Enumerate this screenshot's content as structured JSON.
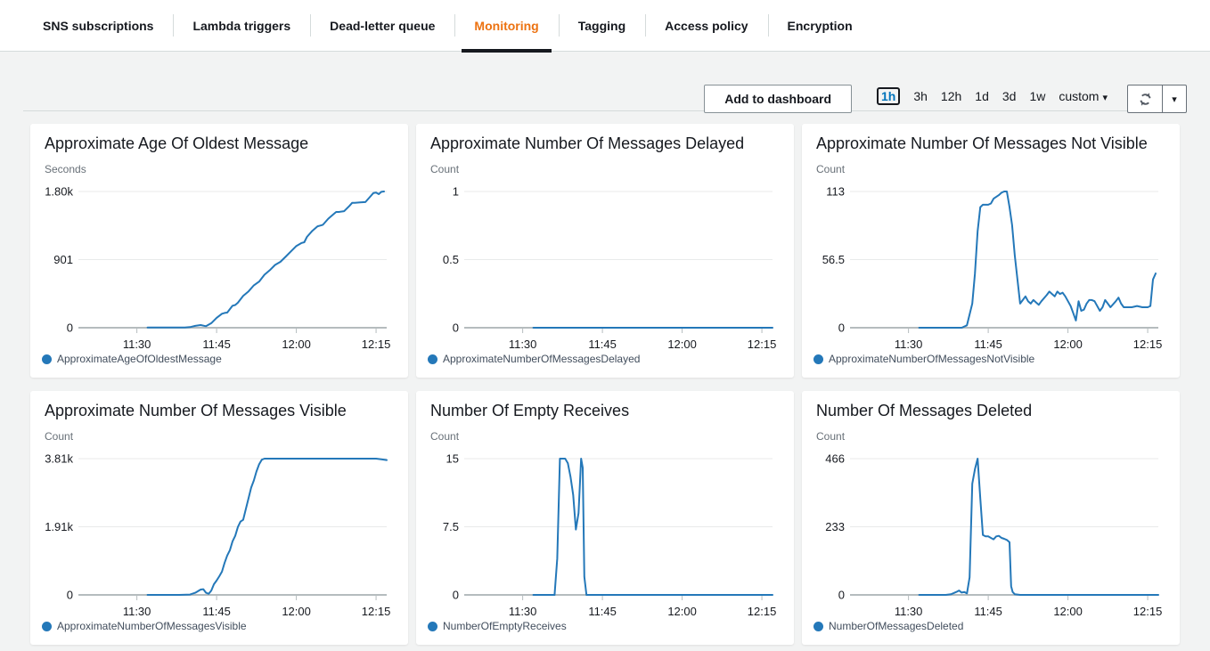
{
  "colors": {
    "accent_orange": "#ec7211",
    "line_blue": "#2478b9",
    "selected_blue": "#0073bb",
    "grid_line": "#e8eaea",
    "axis_line": "#b5bcbe",
    "text_dark": "#16191f",
    "text_muted": "#687078"
  },
  "tabs": {
    "active": "Monitoring",
    "items": [
      {
        "label": "SNS subscriptions"
      },
      {
        "label": "Lambda triggers"
      },
      {
        "label": "Dead-letter queue"
      },
      {
        "label": "Monitoring"
      },
      {
        "label": "Tagging"
      },
      {
        "label": "Access policy"
      },
      {
        "label": "Encryption"
      }
    ]
  },
  "toolbar": {
    "add_to_dashboard": "Add to dashboard",
    "ranges": [
      "1h",
      "3h",
      "12h",
      "1d",
      "3d",
      "1w"
    ],
    "selected_range": "1h",
    "custom_label": "custom"
  },
  "chart_data": [
    {
      "type": "line",
      "title": "Approximate Age Of Oldest Message",
      "ylabel": "Seconds",
      "legend": "ApproximateAgeOfOldestMessage",
      "ymax": 1800,
      "yticks": [
        "1.80k",
        "901",
        "0"
      ],
      "xticks": [
        {
          "label": "11:30",
          "t": 30
        },
        {
          "label": "11:45",
          "t": 45
        },
        {
          "label": "12:00",
          "t": 60
        },
        {
          "label": "12:15",
          "t": 75
        }
      ],
      "x_domain_minutes_after_11": [
        19,
        77
      ],
      "points": [
        [
          32,
          2
        ],
        [
          36,
          2
        ],
        [
          39,
          3
        ],
        [
          40,
          8
        ],
        [
          41,
          25
        ],
        [
          42,
          35
        ],
        [
          43,
          20
        ],
        [
          44,
          60
        ],
        [
          45,
          130
        ],
        [
          46,
          185
        ],
        [
          46.5,
          195
        ],
        [
          47,
          200
        ],
        [
          48,
          290
        ],
        [
          48.5,
          300
        ],
        [
          49,
          330
        ],
        [
          50,
          420
        ],
        [
          51,
          480
        ],
        [
          52,
          560
        ],
        [
          53,
          610
        ],
        [
          54,
          700
        ],
        [
          55,
          760
        ],
        [
          56,
          830
        ],
        [
          57,
          870
        ],
        [
          58,
          940
        ],
        [
          59,
          1010
        ],
        [
          60,
          1080
        ],
        [
          61,
          1120
        ],
        [
          61.5,
          1130
        ],
        [
          62,
          1200
        ],
        [
          63,
          1280
        ],
        [
          64,
          1340
        ],
        [
          64.5,
          1350
        ],
        [
          65,
          1360
        ],
        [
          66,
          1440
        ],
        [
          67,
          1500
        ],
        [
          67.5,
          1530
        ],
        [
          68,
          1530
        ],
        [
          69,
          1540
        ],
        [
          70,
          1610
        ],
        [
          70.5,
          1650
        ],
        [
          71,
          1650
        ],
        [
          72,
          1655
        ],
        [
          73,
          1660
        ],
        [
          74,
          1740
        ],
        [
          74.5,
          1780
        ],
        [
          75,
          1785
        ],
        [
          75.5,
          1765
        ],
        [
          76,
          1795
        ],
        [
          76.5,
          1800
        ]
      ]
    },
    {
      "type": "line",
      "title": "Approximate Number Of Messages Delayed",
      "ylabel": "Count",
      "legend": "ApproximateNumberOfMessagesDelayed",
      "ymax": 1,
      "yticks": [
        "1",
        "0.5",
        "0"
      ],
      "xticks": [
        {
          "label": "11:30",
          "t": 30
        },
        {
          "label": "11:45",
          "t": 45
        },
        {
          "label": "12:00",
          "t": 60
        },
        {
          "label": "12:15",
          "t": 75
        }
      ],
      "x_domain_minutes_after_11": [
        19,
        77
      ],
      "points": [
        [
          32,
          0
        ],
        [
          77,
          0
        ]
      ]
    },
    {
      "type": "line",
      "title": "Approximate Number Of Messages Not Visible",
      "ylabel": "Count",
      "legend": "ApproximateNumberOfMessagesNotVisible",
      "ymax": 113,
      "yticks": [
        "113",
        "56.5",
        "0"
      ],
      "xticks": [
        {
          "label": "11:30",
          "t": 30
        },
        {
          "label": "11:45",
          "t": 45
        },
        {
          "label": "12:00",
          "t": 60
        },
        {
          "label": "12:15",
          "t": 75
        }
      ],
      "x_domain_minutes_after_11": [
        19,
        77
      ],
      "points": [
        [
          32,
          0
        ],
        [
          38,
          0
        ],
        [
          40,
          0
        ],
        [
          41,
          2
        ],
        [
          42,
          20
        ],
        [
          42.5,
          45
        ],
        [
          43,
          80
        ],
        [
          43.5,
          100
        ],
        [
          44,
          102
        ],
        [
          45,
          102
        ],
        [
          45.5,
          103
        ],
        [
          46,
          107
        ],
        [
          47,
          110
        ],
        [
          47.5,
          112
        ],
        [
          48,
          113
        ],
        [
          48.5,
          113
        ],
        [
          49,
          100
        ],
        [
          49.5,
          85
        ],
        [
          50,
          60
        ],
        [
          50.5,
          40
        ],
        [
          51,
          20
        ],
        [
          51.5,
          23
        ],
        [
          52,
          26
        ],
        [
          52.5,
          22
        ],
        [
          53,
          20
        ],
        [
          53.5,
          23
        ],
        [
          54,
          21
        ],
        [
          54.5,
          19
        ],
        [
          55,
          22
        ],
        [
          56,
          27
        ],
        [
          56.5,
          30
        ],
        [
          57,
          28
        ],
        [
          57.5,
          26
        ],
        [
          58,
          30
        ],
        [
          58.5,
          28
        ],
        [
          59,
          29
        ],
        [
          59.5,
          26
        ],
        [
          60,
          22
        ],
        [
          60.5,
          18
        ],
        [
          61,
          12
        ],
        [
          61.5,
          6
        ],
        [
          62,
          22
        ],
        [
          62.5,
          14
        ],
        [
          63,
          15
        ],
        [
          63.5,
          20
        ],
        [
          64,
          23
        ],
        [
          64.5,
          23
        ],
        [
          65,
          22
        ],
        [
          66,
          14
        ],
        [
          66.5,
          17
        ],
        [
          67,
          23
        ],
        [
          67.5,
          20
        ],
        [
          68,
          17
        ],
        [
          69,
          22
        ],
        [
          69.5,
          25
        ],
        [
          70,
          20
        ],
        [
          70.5,
          17
        ],
        [
          71,
          17
        ],
        [
          72,
          17
        ],
        [
          73,
          18
        ],
        [
          74,
          17
        ],
        [
          75,
          17
        ],
        [
          75.5,
          18
        ],
        [
          76,
          40
        ],
        [
          76.5,
          45
        ]
      ]
    },
    {
      "type": "line",
      "title": "Approximate Number Of Messages Visible",
      "ylabel": "Count",
      "legend": "ApproximateNumberOfMessagesVisible",
      "ymax": 3810,
      "yticks": [
        "3.81k",
        "1.91k",
        "0"
      ],
      "xticks": [
        {
          "label": "11:30",
          "t": 30
        },
        {
          "label": "11:45",
          "t": 45
        },
        {
          "label": "12:00",
          "t": 60
        },
        {
          "label": "12:15",
          "t": 75
        }
      ],
      "x_domain_minutes_after_11": [
        19,
        77
      ],
      "points": [
        [
          32,
          0
        ],
        [
          38,
          0
        ],
        [
          40,
          10
        ],
        [
          41,
          60
        ],
        [
          42,
          150
        ],
        [
          42.5,
          160
        ],
        [
          43,
          60
        ],
        [
          43.5,
          30
        ],
        [
          44,
          120
        ],
        [
          44.5,
          300
        ],
        [
          45,
          400
        ],
        [
          45.5,
          520
        ],
        [
          46,
          650
        ],
        [
          46.5,
          900
        ],
        [
          47,
          1100
        ],
        [
          47.5,
          1250
        ],
        [
          48,
          1500
        ],
        [
          48.5,
          1650
        ],
        [
          49,
          1900
        ],
        [
          49.5,
          2050
        ],
        [
          50,
          2100
        ],
        [
          50.5,
          2400
        ],
        [
          51,
          2700
        ],
        [
          51.5,
          3000
        ],
        [
          52,
          3200
        ],
        [
          52.5,
          3450
        ],
        [
          53,
          3650
        ],
        [
          53.5,
          3780
        ],
        [
          54,
          3810
        ],
        [
          60,
          3810
        ],
        [
          70,
          3810
        ],
        [
          75,
          3810
        ],
        [
          76,
          3790
        ],
        [
          77,
          3770
        ]
      ]
    },
    {
      "type": "line",
      "title": "Number Of Empty Receives",
      "ylabel": "Count",
      "legend": "NumberOfEmptyReceives",
      "ymax": 15,
      "yticks": [
        "15",
        "7.5",
        "0"
      ],
      "xticks": [
        {
          "label": "11:30",
          "t": 30
        },
        {
          "label": "11:45",
          "t": 45
        },
        {
          "label": "12:00",
          "t": 60
        },
        {
          "label": "12:15",
          "t": 75
        }
      ],
      "x_domain_minutes_after_11": [
        19,
        77
      ],
      "points": [
        [
          32,
          0
        ],
        [
          35,
          0
        ],
        [
          36,
          0
        ],
        [
          36.5,
          4
        ],
        [
          37,
          15
        ],
        [
          38,
          15
        ],
        [
          38.5,
          14.5
        ],
        [
          39,
          13
        ],
        [
          39.5,
          11
        ],
        [
          40,
          7.2
        ],
        [
          40.5,
          9
        ],
        [
          41,
          15
        ],
        [
          41.3,
          14
        ],
        [
          41.6,
          2
        ],
        [
          42,
          0
        ],
        [
          50,
          0
        ],
        [
          60,
          0
        ],
        [
          70,
          0
        ],
        [
          77,
          0
        ]
      ]
    },
    {
      "type": "line",
      "title": "Number Of Messages Deleted",
      "ylabel": "Count",
      "legend": "NumberOfMessagesDeleted",
      "ymax": 466,
      "yticks": [
        "466",
        "233",
        "0"
      ],
      "xticks": [
        {
          "label": "11:30",
          "t": 30
        },
        {
          "label": "11:45",
          "t": 45
        },
        {
          "label": "12:00",
          "t": 60
        },
        {
          "label": "12:15",
          "t": 75
        }
      ],
      "x_domain_minutes_after_11": [
        19,
        77
      ],
      "points": [
        [
          32,
          0
        ],
        [
          37,
          0
        ],
        [
          38,
          2
        ],
        [
          39,
          10
        ],
        [
          39.5,
          15
        ],
        [
          40,
          8
        ],
        [
          40.5,
          10
        ],
        [
          41,
          5
        ],
        [
          41.5,
          60
        ],
        [
          42,
          380
        ],
        [
          42.5,
          430
        ],
        [
          43,
          466
        ],
        [
          43.5,
          330
        ],
        [
          44,
          205
        ],
        [
          44.5,
          200
        ],
        [
          45,
          200
        ],
        [
          45.5,
          195
        ],
        [
          46,
          190
        ],
        [
          46.5,
          200
        ],
        [
          47,
          202
        ],
        [
          47.5,
          195
        ],
        [
          48,
          192
        ],
        [
          48.5,
          188
        ],
        [
          49,
          180
        ],
        [
          49.3,
          30
        ],
        [
          49.6,
          10
        ],
        [
          50,
          2
        ],
        [
          51,
          0
        ],
        [
          60,
          0
        ],
        [
          70,
          0
        ],
        [
          77,
          0
        ]
      ]
    }
  ]
}
